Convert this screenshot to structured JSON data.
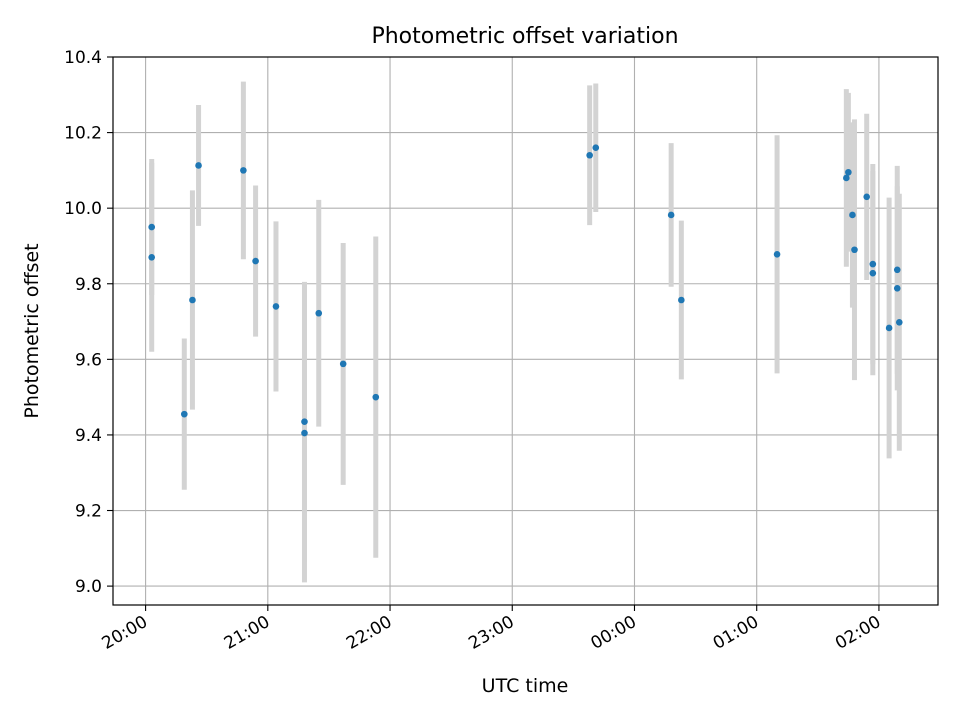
{
  "chart_data": {
    "type": "scatter",
    "title": "Photometric offset variation",
    "xlabel": "UTC time",
    "ylabel": "Photometric offset",
    "x_axis_type": "time",
    "xlim": [
      "19:44",
      "02:29"
    ],
    "ylim": [
      8.95,
      10.4
    ],
    "xticks": [
      {
        "t": "20:00",
        "label": "20:00"
      },
      {
        "t": "21:00",
        "label": "21:00"
      },
      {
        "t": "22:00",
        "label": "22:00"
      },
      {
        "t": "23:00",
        "label": "23:00"
      },
      {
        "t": "00:00",
        "label": "00:00"
      },
      {
        "t": "01:00",
        "label": "01:00"
      },
      {
        "t": "02:00",
        "label": "02:00"
      }
    ],
    "yticks": [
      {
        "v": 9.0,
        "label": "9.0"
      },
      {
        "v": 9.2,
        "label": "9.2"
      },
      {
        "v": 9.4,
        "label": "9.4"
      },
      {
        "v": 9.6,
        "label": "9.6"
      },
      {
        "v": 9.8,
        "label": "9.8"
      },
      {
        "v": 10.0,
        "label": "10.0"
      },
      {
        "v": 10.2,
        "label": "10.2"
      },
      {
        "v": 10.4,
        "label": "10.4"
      }
    ],
    "grid": true,
    "point_color": "#1f77b4",
    "errorbar_color": "#d3d3d3",
    "series": [
      {
        "points": [
          {
            "t": "20:03",
            "y": 9.95,
            "err": 0.18
          },
          {
            "t": "20:03",
            "y": 9.87,
            "err": 0.25
          },
          {
            "t": "20:19",
            "y": 9.455,
            "err": 0.2
          },
          {
            "t": "20:23",
            "y": 9.757,
            "err": 0.29
          },
          {
            "t": "20:26",
            "y": 10.113,
            "err": 0.16
          },
          {
            "t": "20:48",
            "y": 10.1,
            "err": 0.235
          },
          {
            "t": "20:54",
            "y": 9.86,
            "err": 0.2
          },
          {
            "t": "21:04",
            "y": 9.74,
            "err": 0.225
          },
          {
            "t": "21:18",
            "y": 9.435,
            "err": 0.37
          },
          {
            "t": "21:18",
            "y": 9.405,
            "err": 0.395
          },
          {
            "t": "21:25",
            "y": 9.722,
            "err": 0.3
          },
          {
            "t": "21:37",
            "y": 9.588,
            "err": 0.32
          },
          {
            "t": "21:53",
            "y": 9.5,
            "err": 0.425
          },
          {
            "t": "23:38",
            "y": 10.14,
            "err": 0.185
          },
          {
            "t": "23:41",
            "y": 10.16,
            "err": 0.17
          },
          {
            "t": "00:18",
            "y": 9.982,
            "err": 0.19
          },
          {
            "t": "00:23",
            "y": 9.757,
            "err": 0.21
          },
          {
            "t": "01:10",
            "y": 9.878,
            "err": 0.315
          },
          {
            "t": "01:44",
            "y": 10.08,
            "err": 0.235
          },
          {
            "t": "01:45",
            "y": 10.095,
            "err": 0.21
          },
          {
            "t": "01:47",
            "y": 9.982,
            "err": 0.245
          },
          {
            "t": "01:48",
            "y": 9.89,
            "err": 0.345
          },
          {
            "t": "01:54",
            "y": 10.03,
            "err": 0.22
          },
          {
            "t": "01:57",
            "y": 9.852,
            "err": 0.265
          },
          {
            "t": "01:57",
            "y": 9.828,
            "err": 0.27
          },
          {
            "t": "02:05",
            "y": 9.683,
            "err": 0.345
          },
          {
            "t": "02:09",
            "y": 9.837,
            "err": 0.275
          },
          {
            "t": "02:09",
            "y": 9.788,
            "err": 0.27
          },
          {
            "t": "02:10",
            "y": 9.698,
            "err": 0.34
          }
        ]
      }
    ]
  }
}
